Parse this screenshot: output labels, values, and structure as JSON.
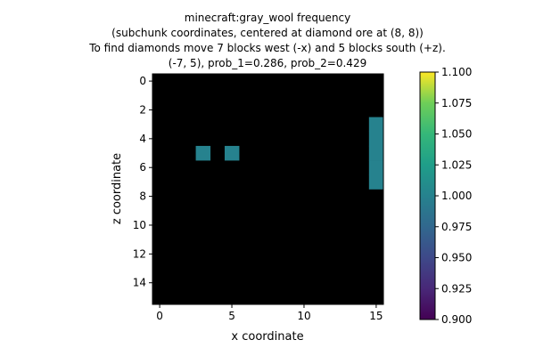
{
  "chart_data": {
    "type": "heatmap",
    "title_lines": [
      "minecraft:gray_wool frequency",
      "(subchunk coordinates, centered at diamond ore at (8, 8))",
      "To find diamonds move 7 blocks west (-x) and 5 blocks south (+z).",
      "(-7, 5), prob_1=0.286, prob_2=0.429"
    ],
    "xlabel": "x coordinate",
    "ylabel": "z coordinate",
    "grid_size": 16,
    "x_ticks": [
      0,
      5,
      10,
      15
    ],
    "y_ticks": [
      0,
      2,
      4,
      6,
      8,
      10,
      12,
      14
    ],
    "background_value": null,
    "background_color": "#000000",
    "cells": [
      {
        "x": 3,
        "z": 5,
        "value": 1.0
      },
      {
        "x": 5,
        "z": 5,
        "value": 1.0
      },
      {
        "x": 15,
        "z": 3,
        "value": 1.0
      },
      {
        "x": 15,
        "z": 4,
        "value": 1.0
      },
      {
        "x": 15,
        "z": 5,
        "value": 1.0
      },
      {
        "x": 15,
        "z": 6,
        "value": 1.0
      },
      {
        "x": 15,
        "z": 7,
        "value": 1.0
      }
    ],
    "colorbar": {
      "colormap": "viridis",
      "vmin": 0.9,
      "vmax": 1.1,
      "ticks": [
        "0.900",
        "0.925",
        "0.950",
        "0.975",
        "1.000",
        "1.025",
        "1.050",
        "1.075",
        "1.100"
      ]
    },
    "grid": false
  }
}
